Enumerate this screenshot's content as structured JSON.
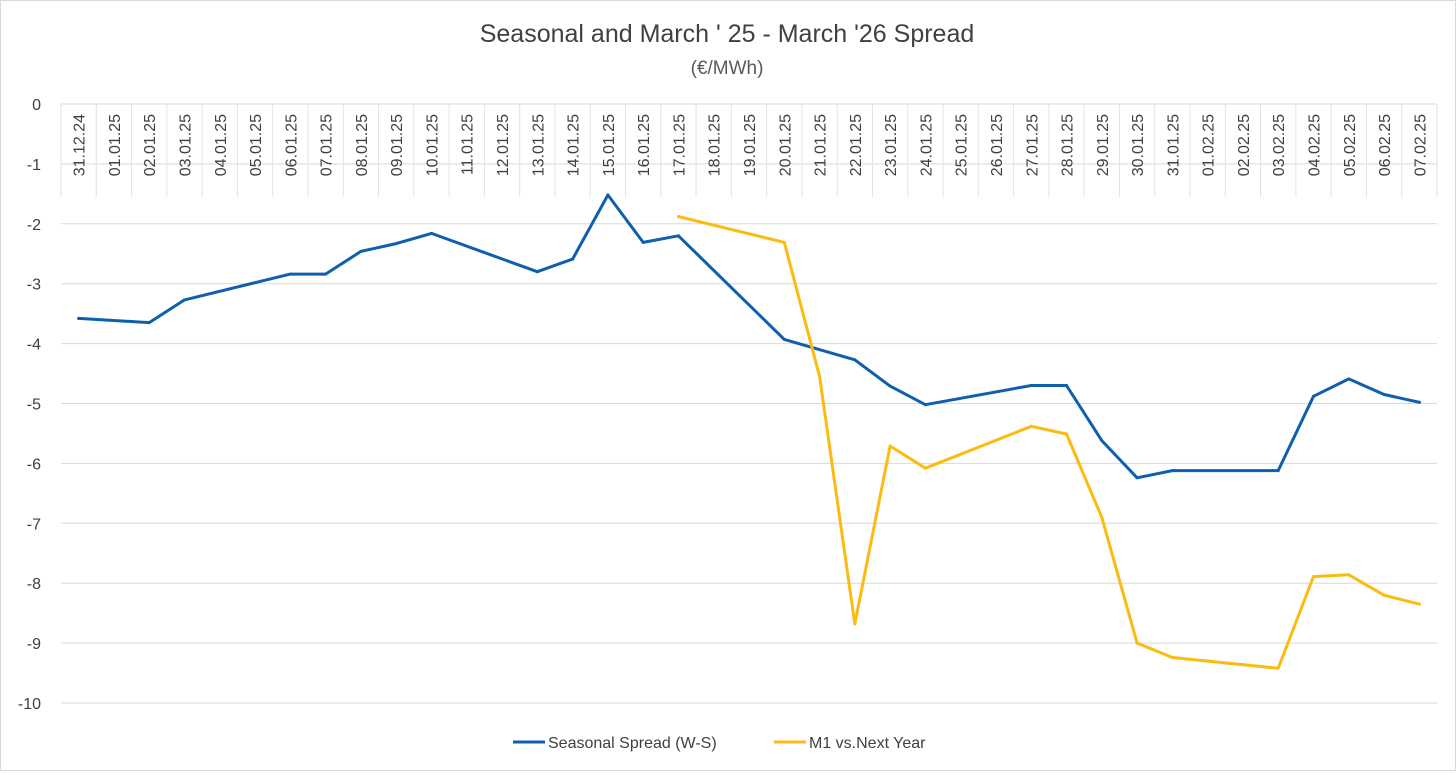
{
  "chart_data": {
    "type": "line",
    "title": "Seasonal and March ' 25 - March '26 Spread",
    "subtitle": "(€/MWh)",
    "xlabel": "",
    "ylabel": "",
    "ylim": [
      -10,
      0
    ],
    "yticks": [
      0,
      -1,
      -2,
      -3,
      -4,
      -5,
      -6,
      -7,
      -8,
      -9,
      -10
    ],
    "grid": true,
    "legend_position": "bottom",
    "categories": [
      "31.12.24",
      "01.01.25",
      "02.01.25",
      "03.01.25",
      "04.01.25",
      "05.01.25",
      "06.01.25",
      "07.01.25",
      "08.01.25",
      "09.01.25",
      "10.01.25",
      "11.01.25",
      "12.01.25",
      "13.01.25",
      "14.01.25",
      "15.01.25",
      "16.01.25",
      "17.01.25",
      "18.01.25",
      "19.01.25",
      "20.01.25",
      "21.01.25",
      "22.01.25",
      "23.01.25",
      "24.01.25",
      "25.01.25",
      "26.01.25",
      "27.01.25",
      "28.01.25",
      "29.01.25",
      "30.01.25",
      "31.01.25",
      "01.02.25",
      "02.02.25",
      "03.02.25",
      "04.02.25",
      "05.02.25",
      "06.02.25",
      "07.02.25"
    ],
    "series": [
      {
        "name": "Seasonal Spread (W-S)",
        "color": "#0f5fae",
        "values": [
          -3.58,
          null,
          -3.65,
          -3.27,
          null,
          null,
          -2.84,
          -2.84,
          -2.46,
          -2.33,
          -2.16,
          null,
          null,
          -2.8,
          -2.59,
          -1.52,
          -2.31,
          -2.2,
          null,
          null,
          -3.93,
          null,
          -4.27,
          -4.71,
          -5.02,
          null,
          null,
          -4.7,
          -4.7,
          -5.62,
          -6.24,
          -6.12,
          null,
          null,
          -6.12,
          -4.88,
          -4.59,
          -4.85,
          -4.98
        ]
      },
      {
        "name": "M1 vs.Next Year",
        "color": "#fbbb12",
        "values": [
          null,
          null,
          null,
          null,
          null,
          null,
          null,
          null,
          null,
          null,
          null,
          null,
          null,
          null,
          null,
          null,
          null,
          -1.88,
          null,
          null,
          -2.31,
          -4.55,
          -8.68,
          -5.71,
          -6.08,
          null,
          null,
          -5.38,
          -5.51,
          -6.9,
          -9.0,
          -9.24,
          null,
          null,
          -9.42,
          -7.89,
          -7.86,
          -8.2,
          -8.35
        ]
      }
    ]
  }
}
